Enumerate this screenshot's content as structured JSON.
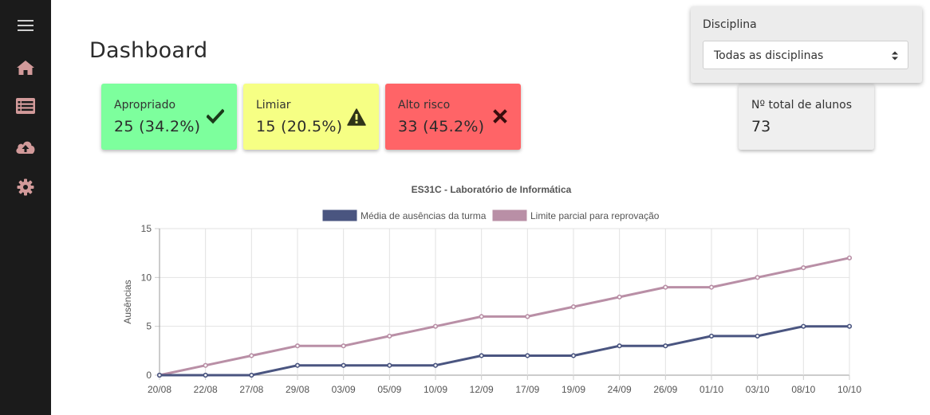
{
  "page": {
    "title": "Dashboard"
  },
  "sidebar": {
    "items": [
      {
        "name": "menu-icon"
      },
      {
        "name": "home-icon"
      },
      {
        "name": "list-icon"
      },
      {
        "name": "cloud-upload-icon"
      },
      {
        "name": "gear-icon"
      }
    ]
  },
  "cards": [
    {
      "label": "Apropriado",
      "value": "25 (34.2%)",
      "color": "#7dff9d",
      "icon": "check-icon"
    },
    {
      "label": "Limiar",
      "value": "15 (20.5%)",
      "color": "#f6ff84",
      "icon": "warning-icon"
    },
    {
      "label": "Alto risco",
      "value": "33 (45.2%)",
      "color": "#ff6467",
      "icon": "x-icon"
    }
  ],
  "total": {
    "label": "Nº total de alunos",
    "value": "73"
  },
  "filter": {
    "label": "Disciplina",
    "selected": "Todas as disciplinas"
  },
  "chart_data": {
    "type": "line",
    "title": "ES31C - Laboratório de Informática",
    "xlabel": "",
    "ylabel": "Ausências",
    "ylim": [
      0,
      15
    ],
    "yticks": [
      "0",
      "5",
      "10",
      "15"
    ],
    "grid": true,
    "legend": "top",
    "categories": [
      "20/08",
      "22/08",
      "27/08",
      "29/08",
      "03/09",
      "05/09",
      "10/09",
      "12/09",
      "17/09",
      "19/09",
      "24/09",
      "26/09",
      "01/10",
      "03/10",
      "08/10",
      "10/10"
    ],
    "series": [
      {
        "name": "Média de ausências da turma",
        "color": "#4a5580",
        "values": [
          0,
          0,
          0,
          1,
          1,
          1,
          1,
          2,
          2,
          2,
          3,
          3,
          4,
          4,
          5,
          5
        ]
      },
      {
        "name": "Limite parcial para reprovação",
        "color": "#b98fa6",
        "values": [
          0,
          1,
          2,
          3,
          3,
          4,
          5,
          6,
          6,
          7,
          8,
          9,
          9,
          10,
          11,
          12
        ]
      }
    ]
  }
}
